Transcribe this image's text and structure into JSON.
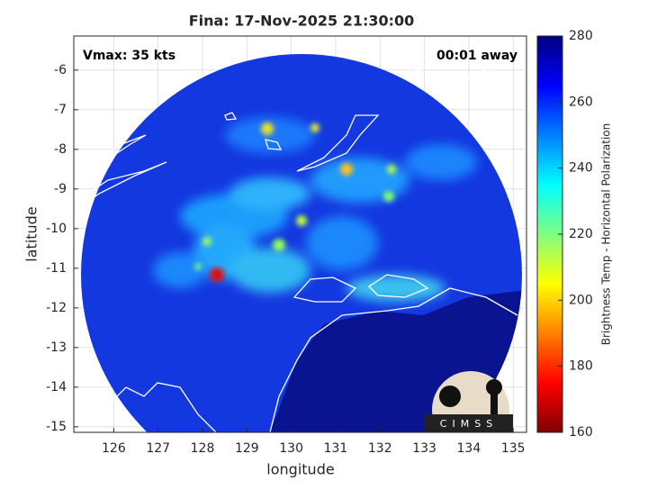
{
  "chart_data": {
    "type": "image",
    "title": "Fina: 17-Nov-2025 21:30:00",
    "annotations": [
      "Vmax: 35 kts",
      "00:01 away"
    ],
    "x_label": "longitude",
    "y_label": "latitude",
    "xlim": [
      125.1,
      135.3
    ],
    "xticks": [
      126,
      127,
      128,
      129,
      130,
      131,
      132,
      133,
      134,
      135
    ],
    "ylim": [
      -15.14,
      -5.14
    ],
    "yticks": [
      -6,
      -7,
      -8,
      -9,
      -10,
      -11,
      -12,
      -13,
      -14,
      -15
    ],
    "grid": true,
    "colorbar": {
      "label": "Brightness Temp - Horizontal Polarization",
      "lim": [
        160,
        280
      ],
      "ticks": [
        160,
        180,
        200,
        220,
        240,
        260,
        280
      ],
      "colormap": [
        "#800000",
        "#ff0000",
        "#ff8000",
        "#ffff00",
        "#80ff80",
        "#00ffff",
        "#0080ff",
        "#0000ff",
        "#000080"
      ]
    },
    "logo": "CIMSS"
  }
}
